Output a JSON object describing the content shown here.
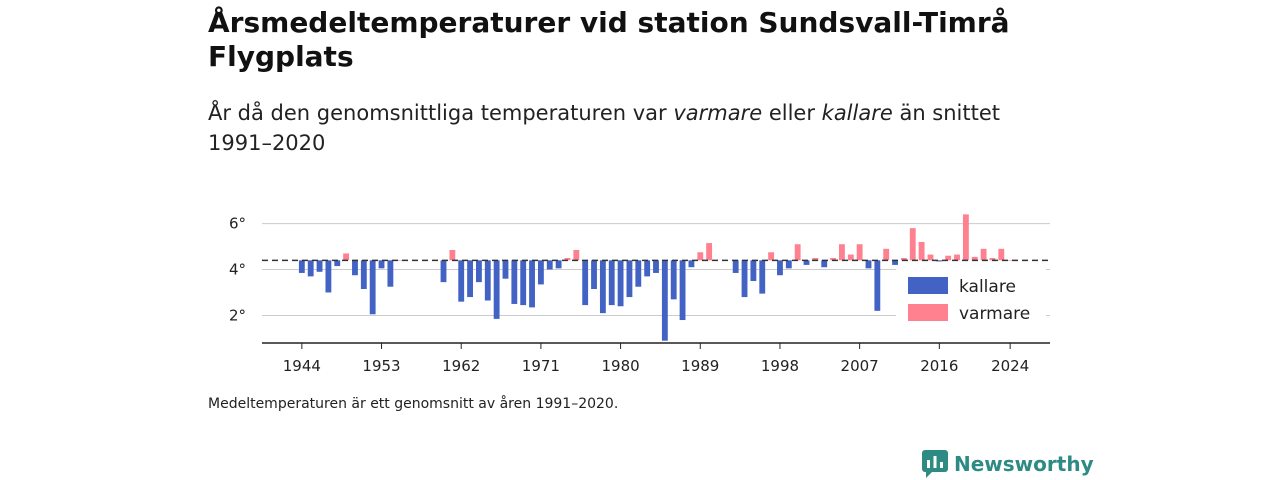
{
  "title": "Årsmedeltemperaturer vid station Sundsvall-Timrå Flygplats",
  "subtitle": {
    "prefix": "År då den genomsnittliga temperaturen var ",
    "warm_word": "varmare",
    "middle": " eller ",
    "cold_word": "kallare",
    "suffix": " än snittet 1991–2020"
  },
  "note": "Medeltemperaturen är ett genomsnitt av åren 1991–2020.",
  "brand": "Newsworthy",
  "colors": {
    "colder": "#4263c4",
    "warmer": "#ff808f",
    "baseline": "#333333",
    "grid": "#cccccc"
  },
  "chart_data": {
    "type": "bar",
    "xlim": [
      1939.5,
      2028.5
    ],
    "ylim": [
      0.8,
      7.2
    ],
    "baseline": 4.4,
    "y_ticks": [
      2,
      4,
      6
    ],
    "y_tick_labels": [
      "2°",
      "4°",
      "6°"
    ],
    "x_ticks": [
      1944,
      1953,
      1962,
      1971,
      1980,
      1989,
      1998,
      2007,
      2016,
      2024
    ],
    "x_tick_labels": [
      "1944",
      "1953",
      "1962",
      "1971",
      "1980",
      "1989",
      "1998",
      "2007",
      "2016",
      "2024"
    ],
    "legend": {
      "position": "bottom-right",
      "colder_label": "kallare",
      "warmer_label": "varmare"
    },
    "years": [
      1944,
      1945,
      1946,
      1947,
      1948,
      1949,
      1950,
      1951,
      1952,
      1953,
      1954,
      1955,
      1960,
      1961,
      1962,
      1963,
      1964,
      1965,
      1966,
      1967,
      1968,
      1969,
      1970,
      1971,
      1972,
      1973,
      1974,
      1975,
      1976,
      1977,
      1978,
      1979,
      1980,
      1981,
      1982,
      1983,
      1984,
      1985,
      1986,
      1987,
      1988,
      1989,
      1990,
      1993,
      1994,
      1995,
      1996,
      1997,
      1998,
      1999,
      2000,
      2001,
      2002,
      2003,
      2004,
      2005,
      2006,
      2007,
      2008,
      2009,
      2010,
      2011,
      2012,
      2013,
      2014,
      2015,
      2016,
      2017,
      2018,
      2019,
      2020,
      2021,
      2022,
      2023,
      2024
    ],
    "values": [
      3.85,
      3.7,
      3.9,
      3.0,
      4.15,
      4.7,
      3.75,
      3.15,
      2.05,
      4.05,
      3.25,
      4.4,
      3.45,
      4.85,
      2.6,
      2.8,
      3.45,
      2.65,
      1.85,
      3.6,
      2.5,
      2.45,
      2.35,
      3.35,
      4.0,
      4.05,
      4.5,
      4.85,
      2.45,
      3.15,
      2.1,
      2.45,
      2.4,
      2.8,
      3.25,
      3.7,
      3.85,
      0.9,
      2.7,
      1.8,
      4.1,
      4.75,
      5.15,
      3.85,
      2.8,
      3.5,
      2.95,
      4.75,
      3.75,
      4.05,
      5.1,
      4.2,
      4.5,
      4.1,
      4.5,
      5.1,
      4.65,
      5.1,
      4.05,
      2.2,
      4.9,
      4.2,
      4.5,
      5.8,
      5.2,
      4.65,
      4.35,
      4.6,
      4.65,
      6.4,
      4.55,
      4.9,
      4.5,
      4.9,
      4.4
    ]
  }
}
